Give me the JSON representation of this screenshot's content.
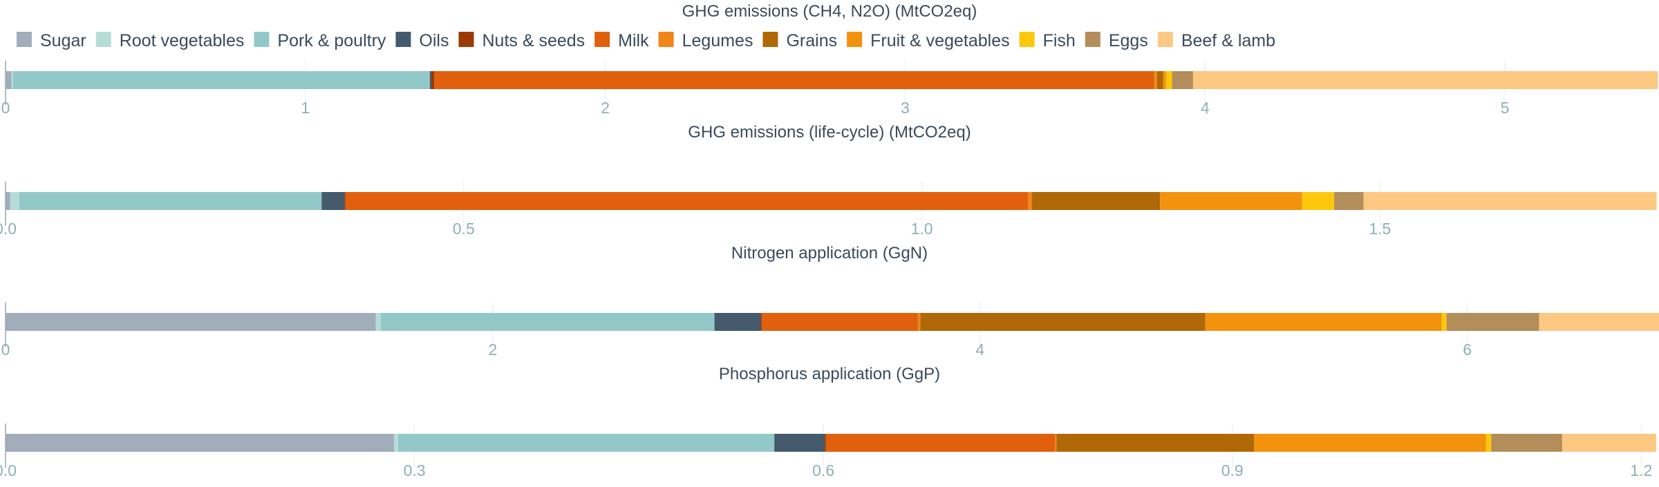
{
  "chart_data": {
    "type": "bar",
    "orientation": "horizontal-stacked",
    "legend": {
      "position": "top-left",
      "items": [
        {
          "name": "Sugar",
          "color": "#a2adbb"
        },
        {
          "name": "Root vegetables",
          "color": "#b6dcd9"
        },
        {
          "name": "Pork & poultry",
          "color": "#93c8c8"
        },
        {
          "name": "Oils",
          "color": "#455a6d"
        },
        {
          "name": "Nuts & seeds",
          "color": "#9c3a05"
        },
        {
          "name": "Milk",
          "color": "#e0600d"
        },
        {
          "name": "Legumes",
          "color": "#f28518"
        },
        {
          "name": "Grains",
          "color": "#b06806"
        },
        {
          "name": "Fruit & vegetables",
          "color": "#f2920d"
        },
        {
          "name": "Fish",
          "color": "#fdc80c"
        },
        {
          "name": "Eggs",
          "color": "#b38e5b"
        },
        {
          "name": "Beef & lamb",
          "color": "#fdc882"
        }
      ]
    },
    "panels": [
      {
        "title": "GHG emissions (CH4, N2O) (MtCO2eq)",
        "xlim": [
          0,
          5.5
        ],
        "ticks": [
          0,
          1,
          2,
          3,
          4,
          5
        ],
        "tick_labels": [
          "0",
          "1",
          "2",
          "3",
          "4",
          "5"
        ],
        "values": [
          0.02,
          0.005,
          1.39,
          0.005,
          0.01,
          2.4,
          0.01,
          0.02,
          0.01,
          0.02,
          0.07,
          1.55
        ]
      },
      {
        "title": "GHG emissions (life-cycle) (MtCO2eq)",
        "xlim": [
          0,
          1.8
        ],
        "ticks": [
          0,
          0.5,
          1.0,
          1.5
        ],
        "tick_labels": [
          "0.0",
          "0.5",
          "1.0",
          "1.5"
        ],
        "values": [
          0.005,
          0.01,
          0.33,
          0.025,
          0.001,
          0.745,
          0.004,
          0.14,
          0.155,
          0.035,
          0.032,
          0.32
        ]
      },
      {
        "title": "Nitrogen application (GgN)",
        "xlim": [
          0,
          6.77
        ],
        "ticks": [
          0,
          2,
          4,
          6
        ],
        "tick_labels": [
          "0",
          "2",
          "4",
          "6"
        ],
        "values": [
          1.52,
          0.02,
          1.37,
          0.19,
          0.005,
          0.64,
          0.01,
          1.17,
          0.97,
          0.02,
          0.38,
          0.495
        ]
      },
      {
        "title": "Phosphorus application (GgP)",
        "xlim": [
          0,
          1.21
        ],
        "ticks": [
          0,
          0.3,
          0.6,
          0.9,
          1.2
        ],
        "tick_labels": [
          "0.0",
          "0.3",
          "0.6",
          "0.9",
          "1.2"
        ],
        "values": [
          0.285,
          0.003,
          0.276,
          0.037,
          0.001,
          0.168,
          0.001,
          0.145,
          0.17,
          0.004,
          0.052,
          0.069
        ]
      }
    ]
  }
}
